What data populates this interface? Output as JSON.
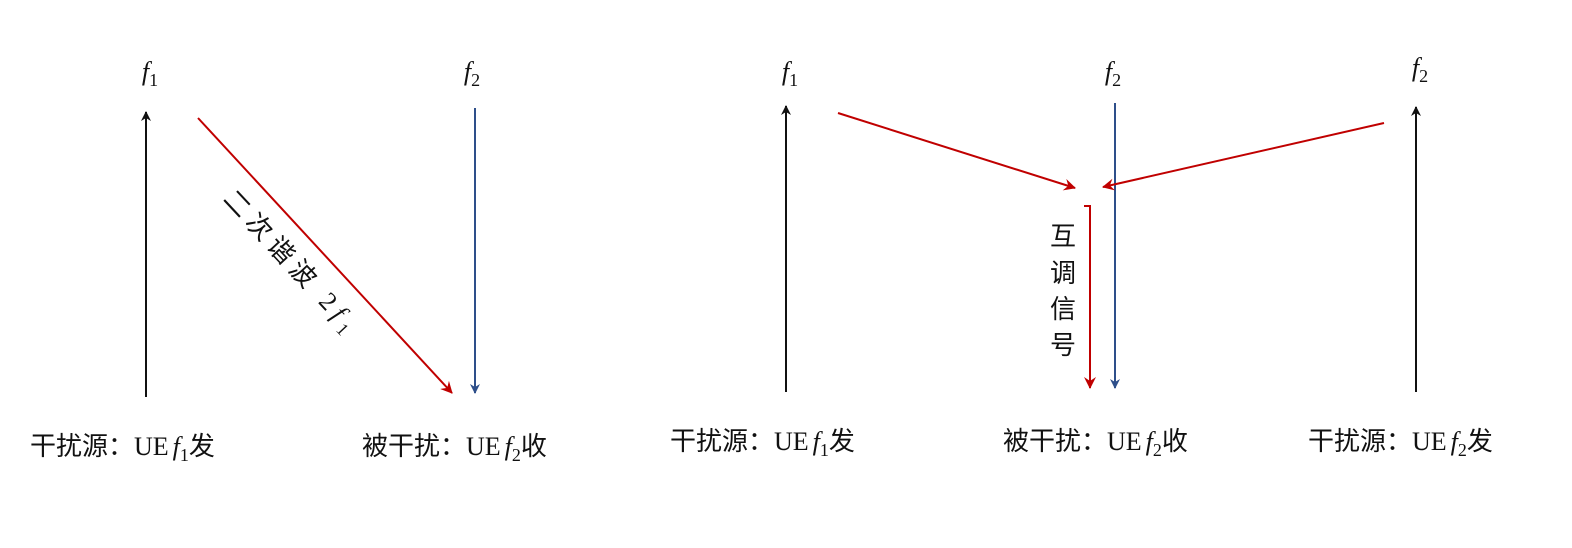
{
  "left_diagram": {
    "top_labels": [
      {
        "italic": "f",
        "sub": "1"
      },
      {
        "italic": "f",
        "sub": "2"
      }
    ],
    "arrow_label": {
      "text": "二次谐波",
      "italic_prefix": "2",
      "italic": "f",
      "sub": "1"
    },
    "bottom_labels": [
      {
        "prefix": "干扰源：UE",
        "italic": "f",
        "sub": "1",
        "suffix": "发"
      },
      {
        "prefix": "被干扰：UE",
        "italic": "f",
        "sub": "2",
        "suffix": "收"
      }
    ]
  },
  "right_diagram": {
    "top_labels": [
      {
        "italic": "f",
        "sub": "1"
      },
      {
        "italic": "f",
        "sub": "2"
      },
      {
        "italic": "f",
        "sub": "2"
      }
    ],
    "arrow_label": [
      "互",
      "调",
      "信",
      "号"
    ],
    "bottom_labels": [
      {
        "prefix": "干扰源：UE",
        "italic": "f",
        "sub": "1",
        "suffix": "发"
      },
      {
        "prefix": "被干扰：UE",
        "italic": "f",
        "sub": "2",
        "suffix": "收"
      },
      {
        "prefix": "干扰源：UE",
        "italic": "f",
        "sub": "2",
        "suffix": "发"
      }
    ]
  }
}
